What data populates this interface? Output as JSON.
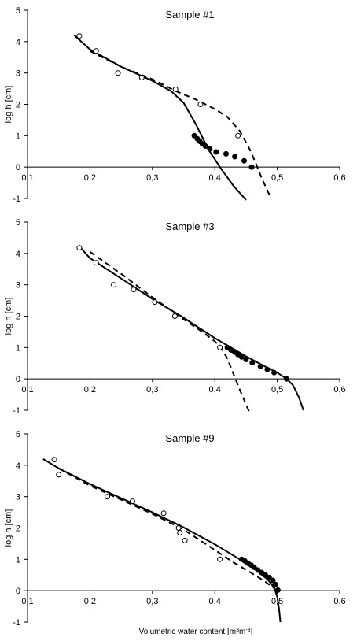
{
  "figure": {
    "xlabel_main": "Volumetric water content [m",
    "xlabel_sup1": "3",
    "xlabel_mid": "m",
    "xlabel_sup2": "-3",
    "xlabel_end": "]"
  },
  "chart_data": [
    {
      "type": "scatter",
      "title": "Sample #1",
      "xlabel": "",
      "ylabel": "log h [cm]",
      "xlim": [
        0.1,
        0.6
      ],
      "ylim": [
        -1,
        5
      ],
      "x_ticks": [
        "0,1",
        "0,2",
        "0,3",
        "0,4",
        "0,5",
        "0,6"
      ],
      "y_ticks": [
        "-1",
        "0",
        "1",
        "2",
        "3",
        "4",
        "5"
      ],
      "series": [
        {
          "style": "open-circles",
          "x": [
            0.183,
            0.21,
            0.245,
            0.283,
            0.337,
            0.377,
            0.437
          ],
          "y": [
            4.18,
            3.7,
            3.0,
            2.85,
            2.48,
            2.0,
            1.0
          ]
        },
        {
          "style": "filled-circles",
          "x": [
            0.367,
            0.372,
            0.376,
            0.38,
            0.385,
            0.392,
            0.402,
            0.418,
            0.432,
            0.447,
            0.459
          ],
          "y": [
            1.0,
            0.9,
            0.82,
            0.74,
            0.67,
            0.58,
            0.48,
            0.42,
            0.33,
            0.2,
            0.0
          ]
        },
        {
          "style": "solid-line",
          "x": [
            0.175,
            0.2,
            0.25,
            0.3,
            0.33,
            0.35,
            0.37,
            0.39,
            0.41,
            0.43,
            0.45
          ],
          "y": [
            4.2,
            3.75,
            3.2,
            2.75,
            2.42,
            2.05,
            1.35,
            0.55,
            -0.05,
            -0.6,
            -1.05
          ]
        },
        {
          "style": "dashed-line",
          "x": [
            0.2,
            0.25,
            0.3,
            0.34,
            0.37,
            0.4,
            0.42,
            0.44,
            0.455,
            0.465,
            0.475,
            0.49
          ],
          "y": [
            3.7,
            3.2,
            2.8,
            2.4,
            2.15,
            1.85,
            1.6,
            1.15,
            0.6,
            0.15,
            -0.35,
            -1.0
          ]
        }
      ]
    },
    {
      "type": "scatter",
      "title": "Sample #3",
      "xlabel": "",
      "ylabel": "log h [cm]",
      "xlim": [
        0.1,
        0.6
      ],
      "ylim": [
        -1,
        5
      ],
      "x_ticks": [
        "0,1",
        "0,2",
        "0,3",
        "0,4",
        "0,5",
        "0,6"
      ],
      "y_ticks": [
        "-1",
        "0",
        "1",
        "2",
        "3",
        "4",
        "5"
      ],
      "series": [
        {
          "style": "open-circles",
          "x": [
            0.183,
            0.21,
            0.238,
            0.27,
            0.304,
            0.336,
            0.408
          ],
          "y": [
            4.18,
            3.7,
            3.0,
            2.85,
            2.45,
            2.0,
            1.0
          ]
        },
        {
          "style": "filled-circles",
          "x": [
            0.42,
            0.426,
            0.432,
            0.437,
            0.443,
            0.45,
            0.46,
            0.473,
            0.484,
            0.495,
            0.515
          ],
          "y": [
            1.0,
            0.92,
            0.85,
            0.78,
            0.7,
            0.62,
            0.52,
            0.4,
            0.3,
            0.2,
            0.0
          ]
        },
        {
          "style": "solid-line",
          "x": [
            0.185,
            0.2,
            0.25,
            0.3,
            0.35,
            0.4,
            0.45,
            0.48,
            0.5,
            0.515,
            0.525,
            0.535,
            0.542
          ],
          "y": [
            4.18,
            3.85,
            3.2,
            2.55,
            1.95,
            1.3,
            0.72,
            0.4,
            0.2,
            0.0,
            -0.2,
            -0.6,
            -1.0
          ]
        },
        {
          "style": "dashed-line",
          "x": [
            0.2,
            0.25,
            0.3,
            0.35,
            0.38,
            0.4,
            0.41,
            0.42,
            0.43,
            0.44,
            0.455
          ],
          "y": [
            4.05,
            3.35,
            2.6,
            1.9,
            1.5,
            1.2,
            1.0,
            0.65,
            0.15,
            -0.35,
            -1.05
          ]
        }
      ]
    },
    {
      "type": "scatter",
      "title": "Sample #9",
      "xlabel": "Volumetric water content [m3m-3]",
      "ylabel": "log h [cm]",
      "xlim": [
        0.1,
        0.6
      ],
      "ylim": [
        -1,
        5
      ],
      "x_ticks": [
        "0,1",
        "0,2",
        "0,3",
        "0,4",
        "0,5",
        "0,6"
      ],
      "y_ticks": [
        "-1",
        "0",
        "1",
        "2",
        "3",
        "4",
        "5"
      ],
      "series": [
        {
          "style": "open-circles",
          "x": [
            0.143,
            0.15,
            0.228,
            0.268,
            0.318,
            0.342,
            0.344,
            0.352,
            0.408
          ],
          "y": [
            4.18,
            3.7,
            3.0,
            2.85,
            2.47,
            2.0,
            1.85,
            1.6,
            1.0
          ]
        },
        {
          "style": "filled-circles",
          "x": [
            0.443,
            0.448,
            0.453,
            0.458,
            0.463,
            0.469,
            0.475,
            0.481,
            0.487,
            0.493,
            0.497,
            0.501
          ],
          "y": [
            1.0,
            0.95,
            0.88,
            0.82,
            0.75,
            0.66,
            0.58,
            0.5,
            0.42,
            0.33,
            0.2,
            0.02
          ]
        },
        {
          "style": "solid-line",
          "x": [
            0.125,
            0.15,
            0.2,
            0.25,
            0.3,
            0.35,
            0.4,
            0.44,
            0.47,
            0.485,
            0.495,
            0.5,
            0.503,
            0.505
          ],
          "y": [
            4.2,
            3.9,
            3.4,
            2.95,
            2.5,
            2.02,
            1.48,
            1.0,
            0.6,
            0.35,
            0.1,
            -0.2,
            -0.6,
            -1.0
          ]
        },
        {
          "style": "dashed-line",
          "x": [
            0.15,
            0.2,
            0.25,
            0.3,
            0.35,
            0.4,
            0.43,
            0.46,
            0.48,
            0.495,
            0.5
          ],
          "y": [
            3.9,
            3.35,
            2.9,
            2.45,
            1.95,
            1.3,
            0.9,
            0.55,
            0.3,
            0.08,
            -0.05
          ]
        }
      ]
    }
  ]
}
